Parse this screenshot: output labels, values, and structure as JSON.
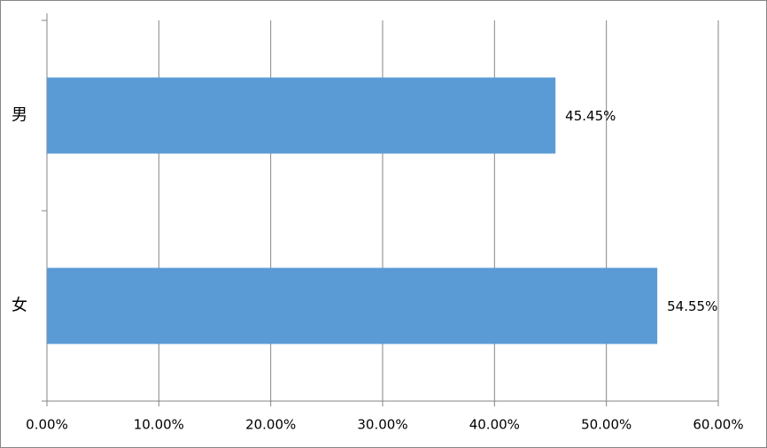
{
  "chart_data": {
    "type": "bar",
    "orientation": "horizontal",
    "categories": [
      "男",
      "女"
    ],
    "values": [
      45.45,
      54.55
    ],
    "value_labels": [
      "45.45%",
      "54.55%"
    ],
    "color": "#5b9bd5",
    "xlim": [
      0,
      60
    ],
    "xticks": [
      {
        "value": 0,
        "label": "0.00%"
      },
      {
        "value": 10,
        "label": "10.00%"
      },
      {
        "value": 20,
        "label": "20.00%"
      },
      {
        "value": 30,
        "label": "30.00%"
      },
      {
        "value": 40,
        "label": "40.00%"
      },
      {
        "value": 50,
        "label": "50.00%"
      },
      {
        "value": 60,
        "label": "60.00%"
      }
    ],
    "grid": true
  }
}
